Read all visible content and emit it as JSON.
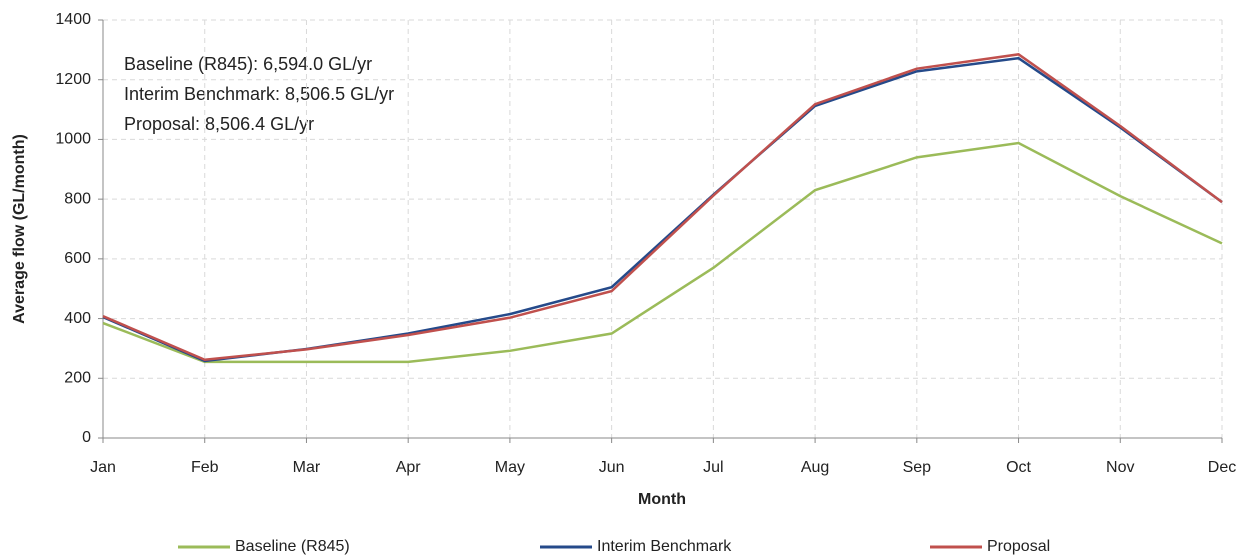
{
  "chart_data": {
    "type": "line",
    "annotations": [
      "Baseline (R845): 6,594.0 GL/yr",
      "Interim Benchmark: 8,506.5 GL/yr",
      "Proposal: 8,506.4 GL/yr"
    ],
    "x_label": "Month",
    "y_label": "Average flow (GL/month)",
    "categories": [
      "Jan",
      "Feb",
      "Mar",
      "Apr",
      "May",
      "Jun",
      "Jul",
      "Aug",
      "Sep",
      "Oct",
      "Nov",
      "Dec"
    ],
    "series": [
      {
        "name": "Baseline (R845)",
        "color": "#9bbb59",
        "values": [
          385,
          255,
          255,
          255,
          292,
          350,
          570,
          830,
          940,
          988,
          810,
          652
        ]
      },
      {
        "name": "Interim Benchmark",
        "color": "#254a8a",
        "values": [
          405,
          258,
          298,
          350,
          415,
          505,
          815,
          1112,
          1228,
          1272,
          1040,
          790
        ]
      },
      {
        "name": "Proposal",
        "color": "#c0504d",
        "values": [
          408,
          262,
          297,
          345,
          403,
          492,
          812,
          1118,
          1237,
          1285,
          1045,
          790
        ]
      }
    ],
    "ylim": [
      0,
      1400
    ],
    "yticks": [
      0,
      200,
      400,
      600,
      800,
      1000,
      1200,
      1400
    ],
    "grid": true,
    "legend": "bottom"
  }
}
